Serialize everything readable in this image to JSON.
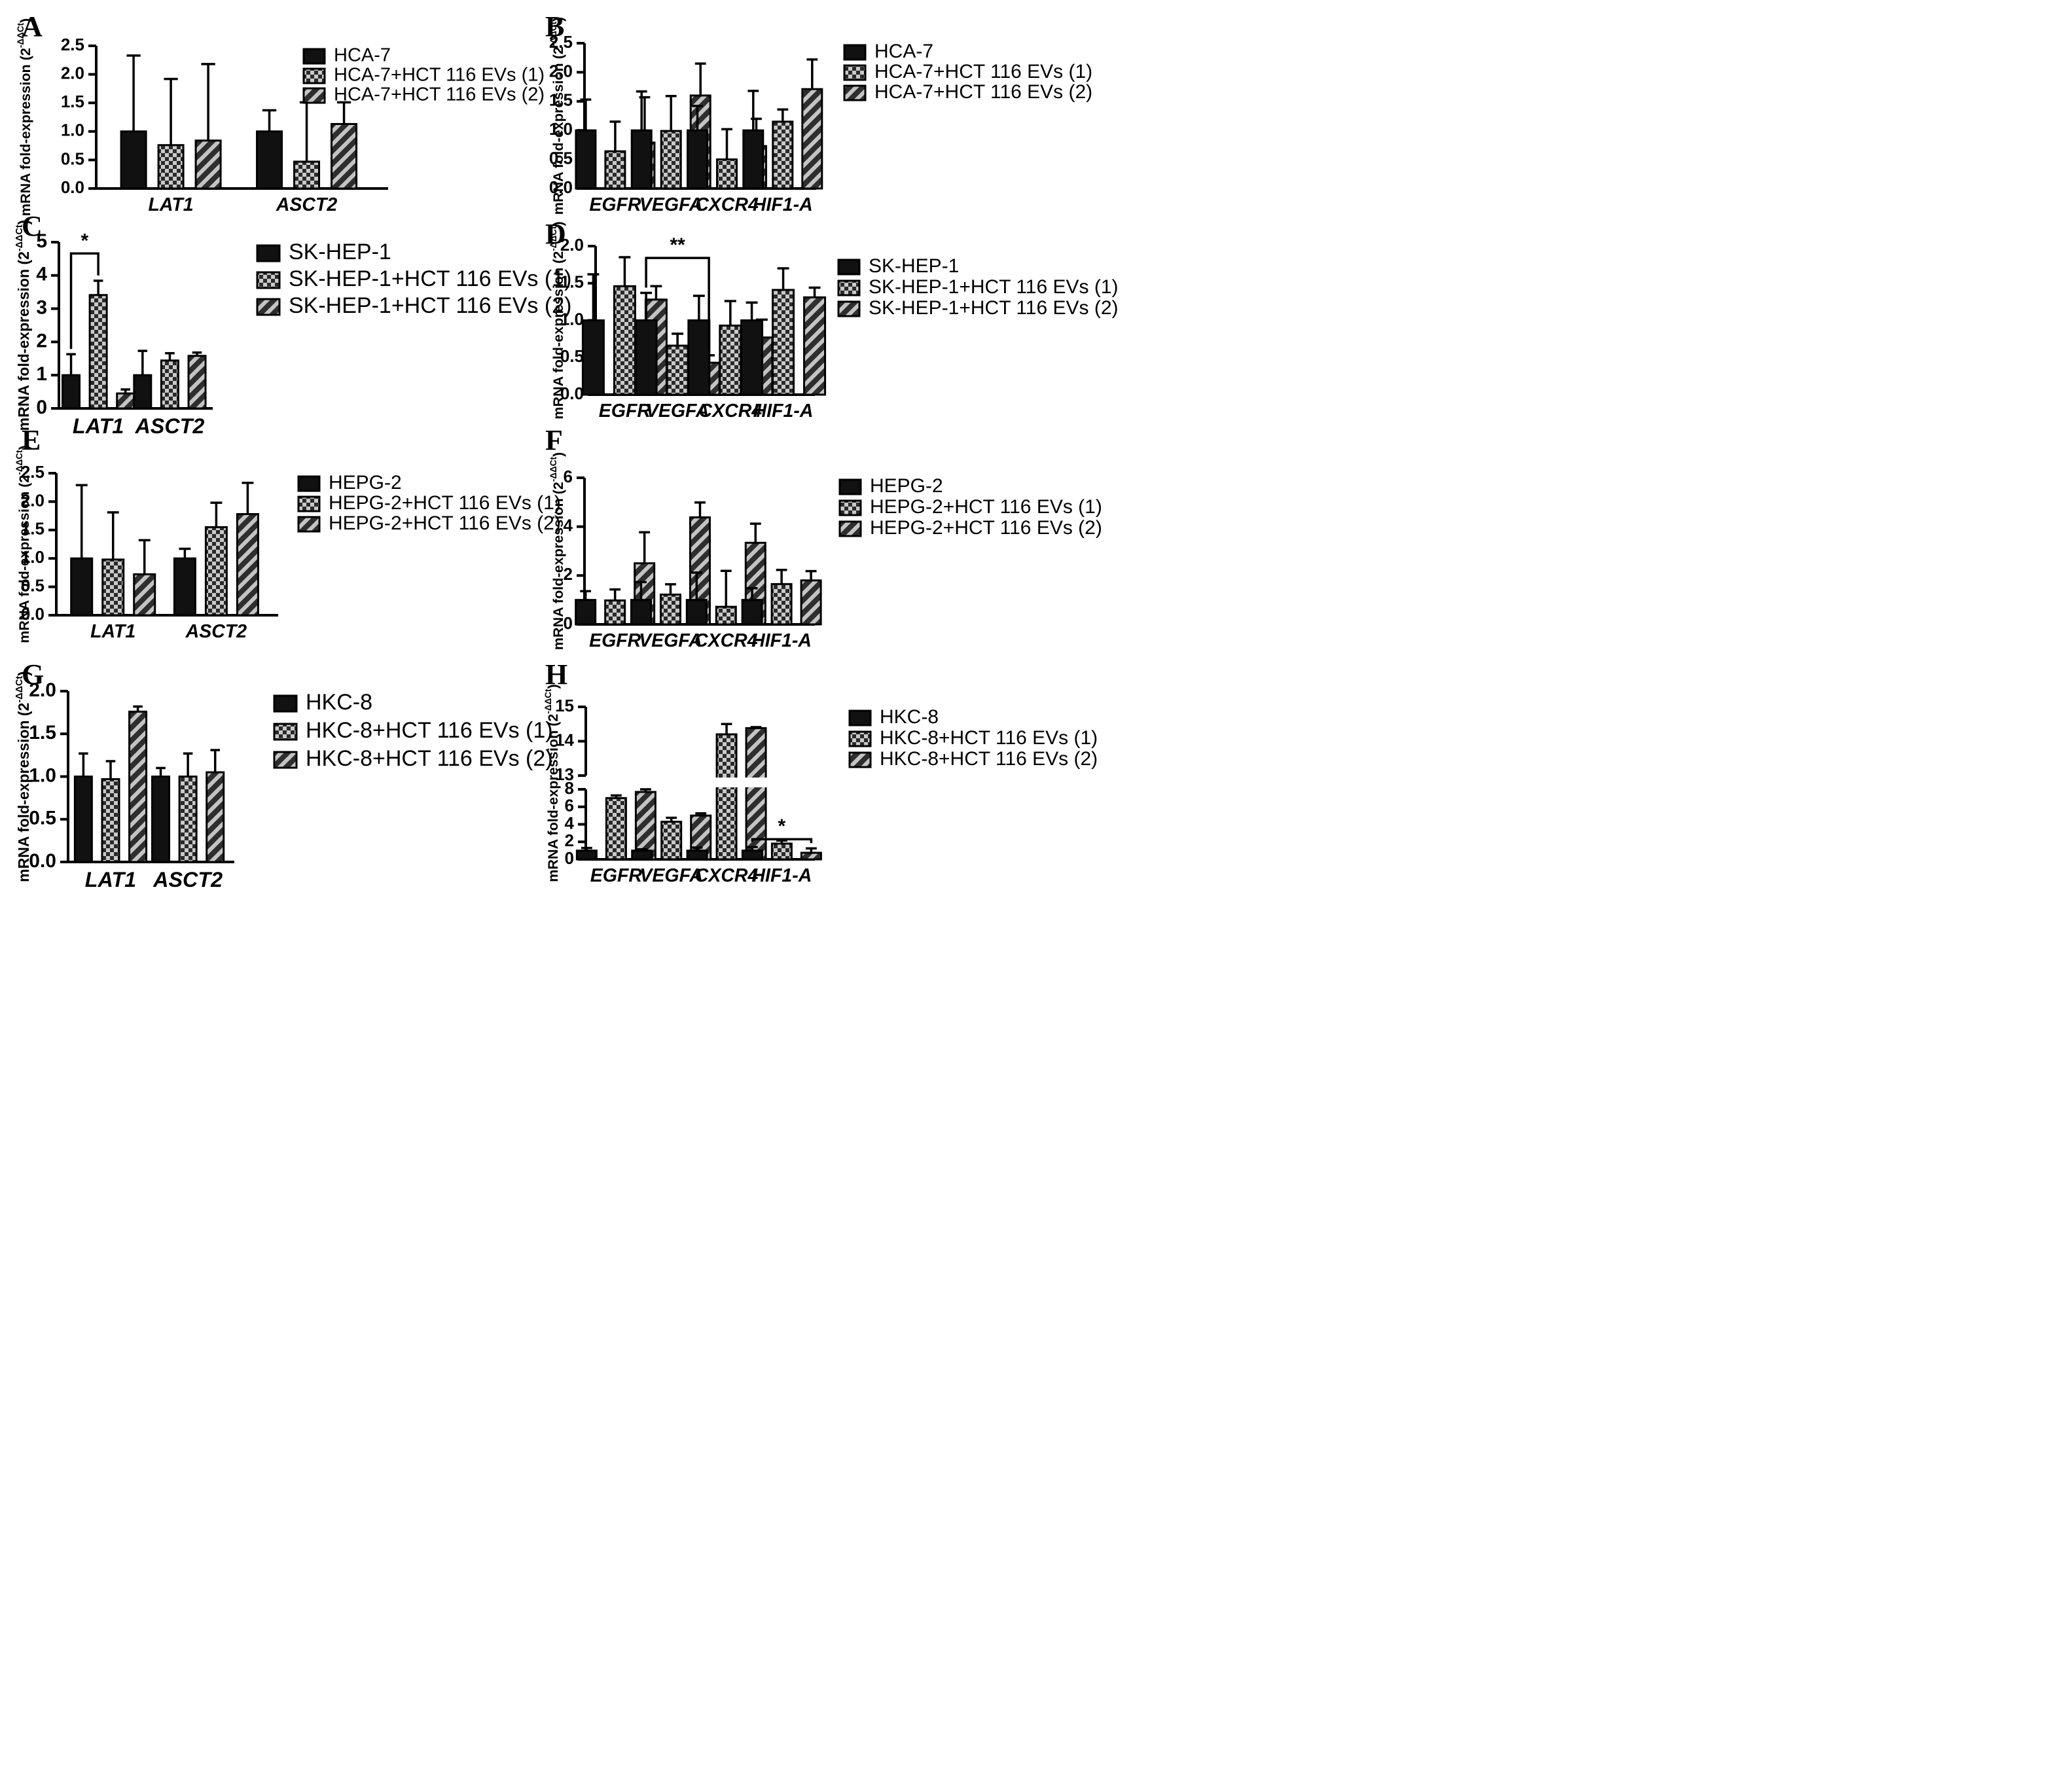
{
  "chart_data": [
    {
      "panel": "A",
      "type": "bar",
      "ylabel": "mRNA fold-expression (2-ΔΔCt)",
      "ylim": [
        0,
        2.5
      ],
      "yticks": [
        "0.0",
        "0.5",
        "1.0",
        "1.5",
        "2.0",
        "2.5"
      ],
      "categories": [
        "LAT1",
        "ASCT2"
      ],
      "series": [
        {
          "name": "HCA-7",
          "values": [
            1.0,
            1.0
          ],
          "errors": [
            1.33,
            0.37
          ]
        },
        {
          "name": "HCA-7+HCT 116 EVs (1)",
          "values": [
            0.76,
            0.47
          ],
          "errors": [
            1.16,
            1.04
          ]
        },
        {
          "name": "HCA-7+HCT 116 EVs (2)",
          "values": [
            0.84,
            1.13
          ],
          "errors": [
            1.34,
            0.38
          ]
        }
      ]
    },
    {
      "panel": "B",
      "type": "bar",
      "ylabel": "mRNA fold-expression (2-ΔΔCt)",
      "ylim": [
        0,
        2.5
      ],
      "yticks": [
        "0.0",
        "0.5",
        "1.0",
        "1.5",
        "2.0",
        "2.5"
      ],
      "categories": [
        "EGFR",
        "VEGFA",
        "CXCR4",
        "HIF1-A"
      ],
      "series": [
        {
          "name": "HCA-7",
          "values": [
            1.0,
            1.0,
            1.0,
            1.0
          ],
          "errors": [
            0.53,
            0.67,
            0.42,
            0.68
          ]
        },
        {
          "name": "HCA-7+HCT 116 EVs (1)",
          "values": [
            0.64,
            0.99,
            0.5,
            1.15
          ],
          "errors": [
            0.51,
            0.6,
            0.52,
            0.21
          ]
        },
        {
          "name": "HCA-7+HCT 116 EVs (2)",
          "values": [
            0.79,
            1.6,
            0.73,
            1.71
          ],
          "errors": [
            0.78,
            0.55,
            0.47,
            0.51
          ]
        }
      ]
    },
    {
      "panel": "C",
      "type": "bar",
      "ylabel": "mRNA fold-expression (2-ΔΔCt)",
      "ylim": [
        0,
        5
      ],
      "yticks": [
        "0",
        "1",
        "2",
        "3",
        "4",
        "5"
      ],
      "categories": [
        "LAT1",
        "ASCT2"
      ],
      "series": [
        {
          "name": "SK-HEP-1",
          "values": [
            1.0,
            1.0
          ],
          "errors": [
            0.63,
            0.73
          ]
        },
        {
          "name": "SK-HEP-1+HCT 116 EVs (1)",
          "values": [
            3.41,
            1.44
          ],
          "errors": [
            0.43,
            0.22
          ]
        },
        {
          "name": "SK-HEP-1+HCT 116 EVs (2)",
          "values": [
            0.45,
            1.58
          ],
          "errors": [
            0.12,
            0.1
          ]
        }
      ],
      "significance": [
        {
          "category": "LAT1",
          "from_series": 0,
          "to_series": 1,
          "label": "*",
          "y": 4.66
        }
      ]
    },
    {
      "panel": "D",
      "type": "bar",
      "ylabel": "mRNA fold-expression (2-ΔΔCt)",
      "ylim": [
        0,
        2.0
      ],
      "yticks": [
        "0.0",
        "0.5",
        "1.0",
        "1.5",
        "2.0"
      ],
      "categories": [
        "EGFR",
        "VEGFA",
        "CXCR4",
        "HIF1-A"
      ],
      "series": [
        {
          "name": "SK-HEP-1",
          "values": [
            1.0,
            1.0,
            1.0,
            1.0
          ],
          "errors": [
            0.62,
            0.37,
            0.33,
            0.24
          ]
        },
        {
          "name": "SK-HEP-1+HCT 116 EVs (1)",
          "values": [
            1.46,
            0.66,
            0.93,
            1.41
          ],
          "errors": [
            0.39,
            0.16,
            0.33,
            0.29
          ]
        },
        {
          "name": "SK-HEP-1+HCT 116 EVs (2)",
          "values": [
            1.28,
            0.43,
            0.77,
            1.31
          ],
          "errors": [
            0.18,
            0.1,
            0.24,
            0.13
          ]
        }
      ],
      "significance": [
        {
          "category": "VEGFA",
          "from_series": 0,
          "to_series": 2,
          "label": "**",
          "y": 1.84
        }
      ]
    },
    {
      "panel": "E",
      "type": "bar",
      "ylabel": "mRNA fold-expression (2-ΔΔCt)",
      "ylim": [
        0,
        2.5
      ],
      "yticks": [
        "0.0",
        "0.5",
        "1.0",
        "1.5",
        "2.0",
        "2.5"
      ],
      "categories": [
        "LAT1",
        "ASCT2"
      ],
      "series": [
        {
          "name": "HEPG-2",
          "values": [
            1.0,
            1.0
          ],
          "errors": [
            1.29,
            0.17
          ]
        },
        {
          "name": "HEPG-2+HCT 116 EVs (1)",
          "values": [
            0.98,
            1.55
          ],
          "errors": [
            0.83,
            0.43
          ]
        },
        {
          "name": "HEPG-2+HCT 116 EVs (2)",
          "values": [
            0.72,
            1.78
          ],
          "errors": [
            0.6,
            0.55
          ]
        }
      ]
    },
    {
      "panel": "F",
      "type": "bar",
      "ylabel": "mRNA fold-expression (2-ΔΔCt)",
      "ylim": [
        0,
        6
      ],
      "yticks": [
        "0",
        "2",
        "4",
        "6"
      ],
      "categories": [
        "EGFR",
        "VEGFA",
        "CXCR4",
        "HIF1-A"
      ],
      "series": [
        {
          "name": "HEPG-2",
          "values": [
            1.0,
            1.0,
            1.0,
            1.0
          ],
          "errors": [
            0.36,
            0.73,
            1.12,
            0.48
          ]
        },
        {
          "name": "HEPG-2+HCT 116 EVs (1)",
          "values": [
            0.98,
            1.22,
            0.72,
            1.65
          ],
          "errors": [
            0.45,
            0.42,
            1.47,
            0.58
          ]
        },
        {
          "name": "HEPG-2+HCT 116 EVs (2)",
          "values": [
            2.5,
            4.38,
            3.34,
            1.8
          ],
          "errors": [
            1.27,
            0.61,
            0.78,
            0.38
          ]
        }
      ]
    },
    {
      "panel": "G",
      "type": "bar",
      "ylabel": "mRNA fold-expression (2-ΔΔCt)",
      "ylim": [
        0,
        2.0
      ],
      "yticks": [
        "0.0",
        "0.5",
        "1.0",
        "1.5",
        "2.0"
      ],
      "categories": [
        "LAT1",
        "ASCT2"
      ],
      "series": [
        {
          "name": "HKC-8",
          "values": [
            1.0,
            1.0
          ],
          "errors": [
            0.27,
            0.1
          ]
        },
        {
          "name": "HKC-8+HCT 116 EVs (1)",
          "values": [
            0.97,
            1.0
          ],
          "errors": [
            0.21,
            0.27
          ]
        },
        {
          "name": "HKC-8+HCT 116 EVs (2)",
          "values": [
            1.76,
            1.05
          ],
          "errors": [
            0.06,
            0.26
          ]
        }
      ]
    },
    {
      "panel": "H",
      "type": "bar",
      "ylabel": "mRNA fold-expression (2-ΔΔCt)",
      "ylim": [
        0,
        15
      ],
      "axis_break": {
        "lower": [
          0,
          8
        ],
        "upper": [
          13,
          15
        ]
      },
      "yticks": [
        "0",
        "2",
        "4",
        "6",
        "8",
        "13",
        "14",
        "15"
      ],
      "categories": [
        "EGFR",
        "VEGFA",
        "CXCR4",
        "HIF1-A"
      ],
      "series": [
        {
          "name": "HKC-8",
          "values": [
            1.0,
            1.0,
            1.0,
            1.0
          ],
          "errors": [
            0.3,
            0.15,
            0.35,
            0.4
          ]
        },
        {
          "name": "HKC-8+HCT 116 EVs (1)",
          "values": [
            7.0,
            4.3,
            14.2,
            1.8
          ],
          "errors": [
            0.3,
            0.45,
            0.3,
            0.35
          ]
        },
        {
          "name": "HKC-8+HCT 116 EVs (2)",
          "values": [
            7.7,
            5.0,
            14.38,
            0.75
          ],
          "errors": [
            0.3,
            0.25,
            0.03,
            0.5
          ]
        }
      ],
      "significance": [
        {
          "category": "HIF1-A",
          "from_series": 0,
          "to_series": 2,
          "label": "*",
          "y": 2.3
        }
      ]
    }
  ]
}
